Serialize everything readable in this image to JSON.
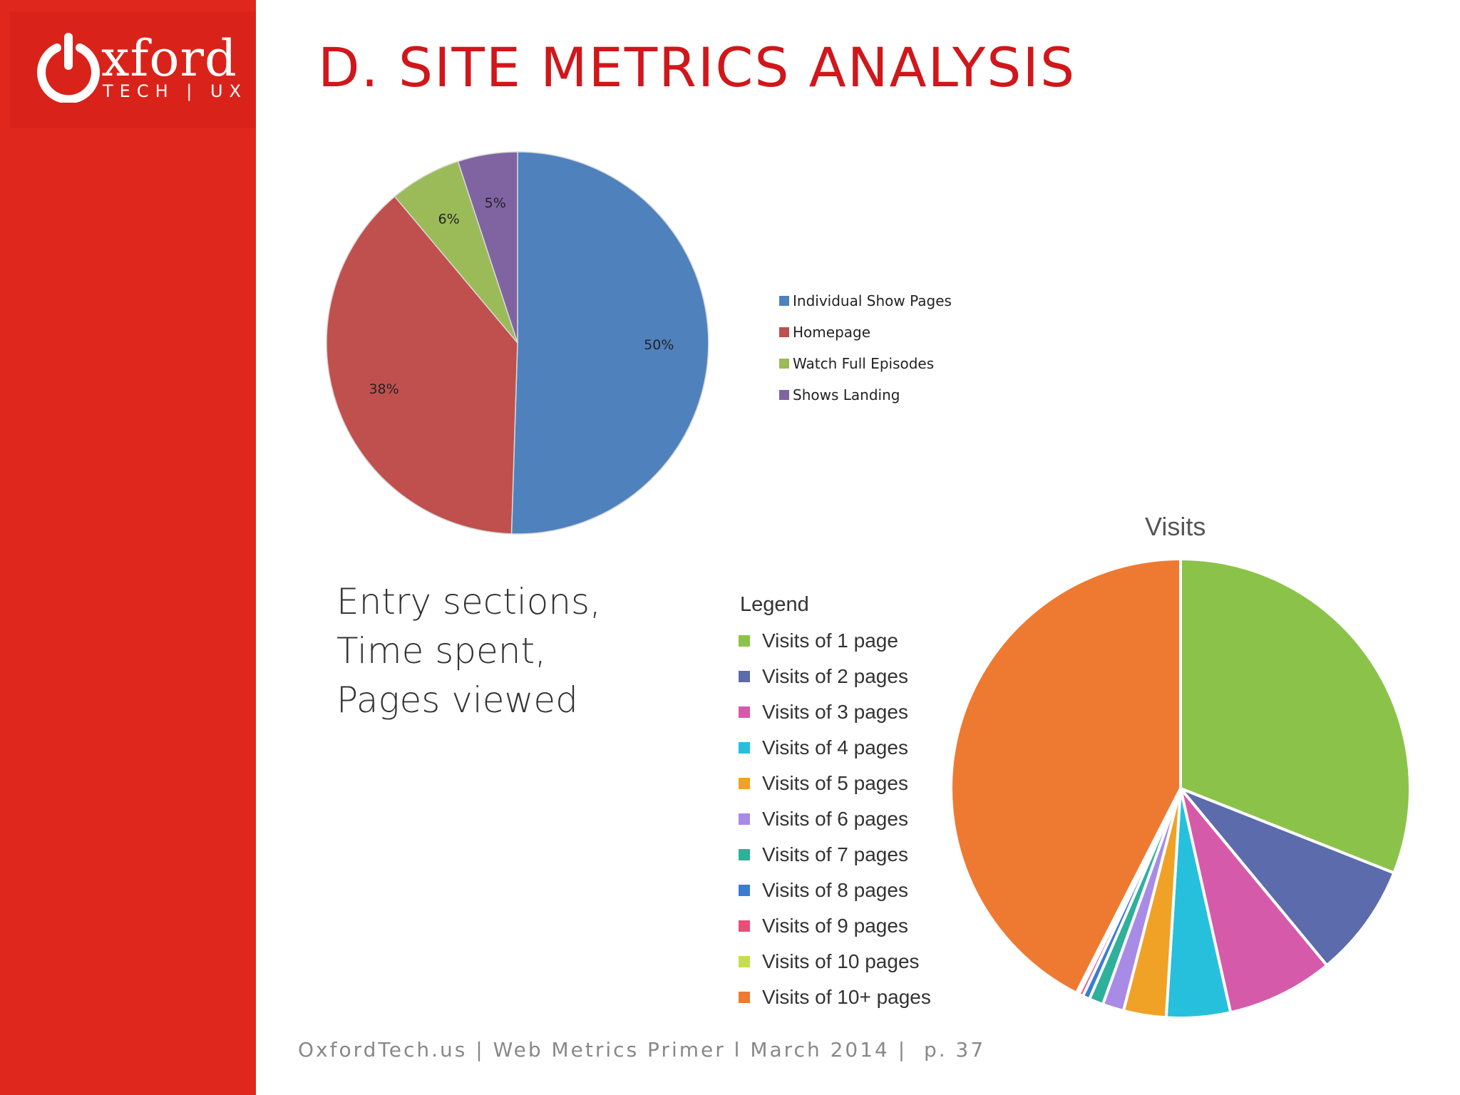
{
  "logo": {
    "word": "xford",
    "sub": "TECH | UX"
  },
  "title": "D. SITE METRICS ANALYSIS",
  "subtitle_lines": [
    "Entry sections,",
    "Time spent,",
    "Pages viewed"
  ],
  "footer": "OxfordTech.us | Web Metrics Primer l March 2014 |  p. 37",
  "chart_data": [
    {
      "type": "pie",
      "title": "",
      "categories": [
        "Individual Show Pages",
        "Homepage",
        "Watch Full Episodes",
        "Shows Landing"
      ],
      "values": [
        50,
        38,
        6,
        5
      ],
      "data_labels": [
        "50%",
        "38%",
        "6%",
        "5%"
      ],
      "colors": [
        "#4f81bd",
        "#c0504d",
        "#9bbb59",
        "#8064a2"
      ],
      "legend": "right"
    },
    {
      "type": "pie",
      "title": "Visits",
      "legend_title": "Legend",
      "categories": [
        "Visits of 1 page",
        "Visits of 2 pages",
        "Visits of 3 pages",
        "Visits of 4 pages",
        "Visits of 5 pages",
        "Visits of 6 pages",
        "Visits of 7 pages",
        "Visits of 8 pages",
        "Visits of 9 pages",
        "Visits of 10 pages",
        "Visits of 10+ pages"
      ],
      "values": [
        31,
        8,
        7.5,
        4.5,
        3,
        1.5,
        1,
        0.5,
        0.3,
        0.2,
        42.5
      ],
      "colors": [
        "#8bc34a",
        "#5c6bab",
        "#d65aaa",
        "#26c0dc",
        "#f0a226",
        "#a88be6",
        "#2fb09b",
        "#3a7dd2",
        "#ea4e78",
        "#c5de4e",
        "#ee7a32"
      ],
      "legend": "left"
    }
  ]
}
